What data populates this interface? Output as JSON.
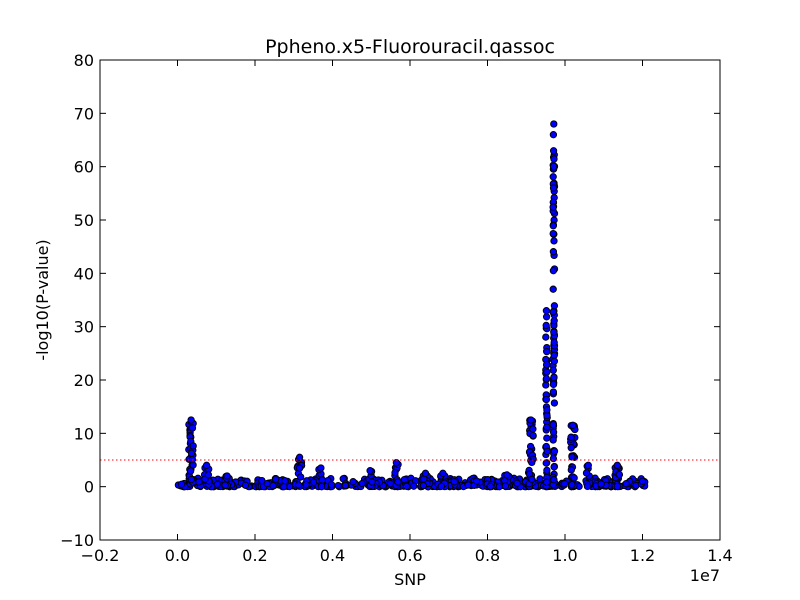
{
  "chart_data": {
    "type": "scatter",
    "title": "Ppheno.x5-Fluorouracil.qassoc",
    "xlabel": "SNP",
    "ylabel": "-log10(P-value)",
    "x_offset_label": "1e7",
    "xlim": [
      -0.2,
      1.4
    ],
    "ylim": [
      -10,
      80
    ],
    "x_ticks": [
      "−0.2",
      "0.0",
      "0.2",
      "0.4",
      "0.6",
      "0.8",
      "1.0",
      "1.2",
      "1.4"
    ],
    "y_ticks": [
      "−10",
      "0",
      "10",
      "20",
      "30",
      "40",
      "50",
      "60",
      "70",
      "80"
    ],
    "grid": false,
    "threshold": {
      "y": 5,
      "color": "#ff0000",
      "style": "dotted"
    },
    "marker": {
      "fill": "#0000ff",
      "edge": "#000000"
    },
    "peaks": [
      {
        "x": 0.035,
        "max": 12.5,
        "n": 34
      },
      {
        "x": 0.075,
        "max": 4.0,
        "n": 16
      },
      {
        "x": 0.128,
        "max": 2.0,
        "n": 8
      },
      {
        "x": 0.315,
        "max": 5.5,
        "n": 10
      },
      {
        "x": 0.37,
        "max": 3.5,
        "n": 8
      },
      {
        "x": 0.497,
        "max": 3.0,
        "n": 8
      },
      {
        "x": 0.565,
        "max": 4.5,
        "n": 10
      },
      {
        "x": 0.64,
        "max": 2.5,
        "n": 6
      },
      {
        "x": 0.685,
        "max": 2.5,
        "n": 6
      },
      {
        "x": 0.85,
        "max": 2.2,
        "n": 6
      },
      {
        "x": 0.912,
        "max": 12.5,
        "n": 26
      },
      {
        "x": 0.952,
        "max": 33.0,
        "n": 44
      },
      {
        "x": 0.971,
        "max": 68.0,
        "n": 90
      },
      {
        "x": 1.02,
        "max": 11.5,
        "n": 28
      },
      {
        "x": 1.06,
        "max": 4.0,
        "n": 10
      },
      {
        "x": 1.135,
        "max": 4.0,
        "n": 14
      },
      {
        "x": 1.2,
        "max": 1.0,
        "n": 4
      }
    ],
    "baseline_range": [
      0.0,
      1.21
    ]
  }
}
